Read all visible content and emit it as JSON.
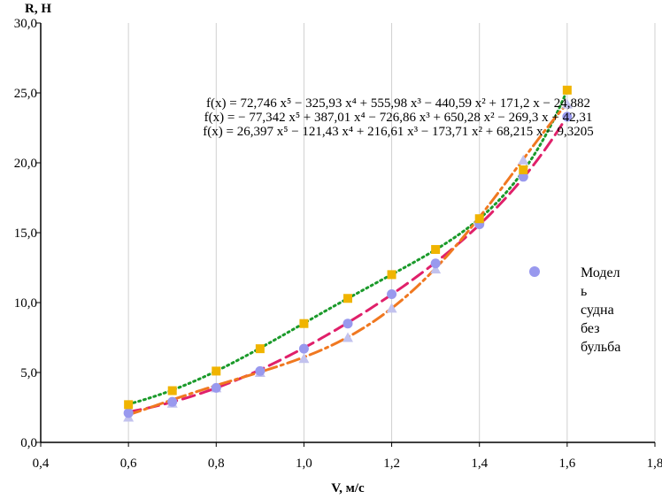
{
  "chart_data": {
    "type": "scatter",
    "xlabel": "V, м/с",
    "ylabel": "R, Н",
    "xlim": [
      0.4,
      1.8
    ],
    "ylim": [
      0,
      30
    ],
    "x_ticks": [
      "0,4",
      "0,6",
      "0,8",
      "1,0",
      "1,2",
      "1,4",
      "1,6",
      "1,8"
    ],
    "y_ticks": [
      "0,0",
      "5,0",
      "10,0",
      "15,0",
      "20,0",
      "25,0",
      "30,0"
    ],
    "grid": "vertical",
    "legend": {
      "position": "right",
      "entries": [
        {
          "label_lines": [
            "Модел",
            "ь",
            "судна",
            "без",
            "бульба"
          ],
          "color": "#9999ee",
          "marker": "circle"
        }
      ]
    },
    "equations": [
      "f(x) = 72,746 x⁵ − 325,93 x⁴ + 555,98 x³ − 440,59 x² + 171,2 x − 24,882",
      "f(x) = − 77,342 x⁵ + 387,01 x⁴ − 726,86 x³ + 650,28 x² − 269,3 x + 42,31",
      "f(x) = 26,397 x⁵ − 121,43 x⁴ + 216,61 x³ − 173,71 x² + 68,215 x − 9,3205"
    ],
    "series": [
      {
        "marker": "square",
        "color": "#f0b400",
        "x": [
          0.6,
          0.7,
          0.8,
          0.9,
          1.0,
          1.1,
          1.2,
          1.3,
          1.4,
          1.5,
          1.6
        ],
        "y": [
          2.7,
          3.7,
          5.1,
          6.7,
          8.5,
          10.3,
          12.0,
          13.8,
          16.0,
          19.5,
          25.2
        ],
        "trend": {
          "coef": [
            -24.882,
            171.2,
            -440.59,
            555.98,
            -325.93,
            72.746
          ],
          "color": "#1a9a2a",
          "dash": "2,4",
          "width": 3
        }
      },
      {
        "marker": "circle",
        "color": "#9999ee",
        "x": [
          0.6,
          0.7,
          0.8,
          0.9,
          1.0,
          1.1,
          1.2,
          1.3,
          1.4,
          1.5,
          1.6
        ],
        "y": [
          2.1,
          2.9,
          3.9,
          5.1,
          6.7,
          8.5,
          10.6,
          12.8,
          15.6,
          19.0,
          23.3
        ],
        "trend": {
          "coef": [
            -9.3205,
            68.215,
            -173.71,
            216.61,
            -121.43,
            26.397
          ],
          "color": "#e0206a",
          "dash": "14,7",
          "width": 3
        }
      },
      {
        "marker": "triangle",
        "color": "#c2c2ee",
        "x": [
          0.6,
          0.7,
          0.8,
          0.9,
          1.0,
          1.1,
          1.2,
          1.3,
          1.4,
          1.5,
          1.6
        ],
        "y": [
          1.8,
          2.8,
          3.9,
          5.0,
          6.0,
          7.5,
          9.6,
          12.4,
          16.0,
          20.2,
          24.2
        ],
        "trend": {
          "coef": [
            42.31,
            -269.3,
            650.28,
            -726.86,
            387.01,
            -77.342
          ],
          "color": "#f07820",
          "dash": "14,5,3,5",
          "width": 3
        }
      }
    ]
  }
}
